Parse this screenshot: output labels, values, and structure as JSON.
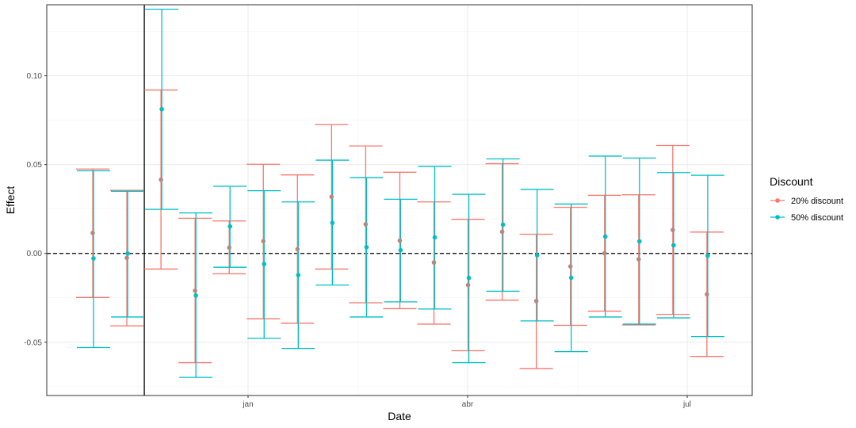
{
  "chart_data": {
    "type": "scatter",
    "error_bars": true,
    "xlabel": "Date",
    "ylabel": "Effect",
    "x_ticks": [
      "jan",
      "abr",
      "jul"
    ],
    "y_ticks": [
      "-0.05",
      "0.00",
      "0.05",
      "0.10"
    ],
    "ylim": [
      -0.08,
      0.14
    ],
    "reference_line": {
      "y": 0.0,
      "style": "dashed"
    },
    "vertical_marker_after_period": 2,
    "grid": true,
    "legend": {
      "title": "Discount",
      "position": "right"
    },
    "periods": [
      "",
      "",
      "",
      "",
      "",
      "",
      "",
      "",
      "",
      "",
      "",
      "",
      "",
      "",
      "",
      "",
      "",
      "",
      ""
    ],
    "series": [
      {
        "name": "20% discount",
        "color": "#F8766D",
        "estimate": [
          0.0115,
          -0.0025,
          0.0415,
          -0.021,
          0.0033,
          0.0069,
          0.0024,
          0.0319,
          0.0164,
          0.0072,
          -0.0051,
          -0.0178,
          0.0122,
          -0.0268,
          -0.0073,
          0.0001,
          -0.0033,
          0.0132,
          -0.023
        ],
        "lower": [
          -0.0248,
          -0.0408,
          -0.0088,
          -0.0615,
          -0.0115,
          -0.0368,
          -0.0393,
          -0.0088,
          -0.0278,
          -0.0311,
          -0.0398,
          -0.0548,
          -0.0263,
          -0.0648,
          -0.0405,
          -0.0325,
          -0.0403,
          -0.0343,
          -0.058
        ],
        "upper": [
          0.0475,
          0.0355,
          0.092,
          0.0198,
          0.0183,
          0.0502,
          0.0442,
          0.0725,
          0.0605,
          0.0457,
          0.029,
          0.0192,
          0.0505,
          0.0108,
          0.026,
          0.0327,
          0.033,
          0.0608,
          0.012
        ]
      },
      {
        "name": "50% discount",
        "color": "#00BFC4",
        "estimate": [
          -0.0028,
          0.0,
          0.0812,
          -0.0237,
          0.0152,
          -0.006,
          -0.0122,
          0.0172,
          0.0035,
          0.0018,
          0.009,
          -0.0138,
          0.0162,
          -0.001,
          -0.0137,
          0.0095,
          0.0068,
          0.0046,
          -0.0013
        ],
        "lower": [
          -0.053,
          -0.0358,
          0.0248,
          -0.0698,
          -0.0078,
          -0.0478,
          -0.0535,
          -0.0178,
          -0.0358,
          -0.0273,
          -0.0313,
          -0.0615,
          -0.0213,
          -0.038,
          -0.0553,
          -0.0358,
          -0.0398,
          -0.0363,
          -0.0468
        ],
        "upper": [
          0.0465,
          0.035,
          0.1375,
          0.0228,
          0.0378,
          0.0353,
          0.029,
          0.0525,
          0.0427,
          0.0305,
          0.049,
          0.0333,
          0.0532,
          0.036,
          0.0278,
          0.0548,
          0.0537,
          0.0455,
          0.044
        ]
      }
    ]
  }
}
